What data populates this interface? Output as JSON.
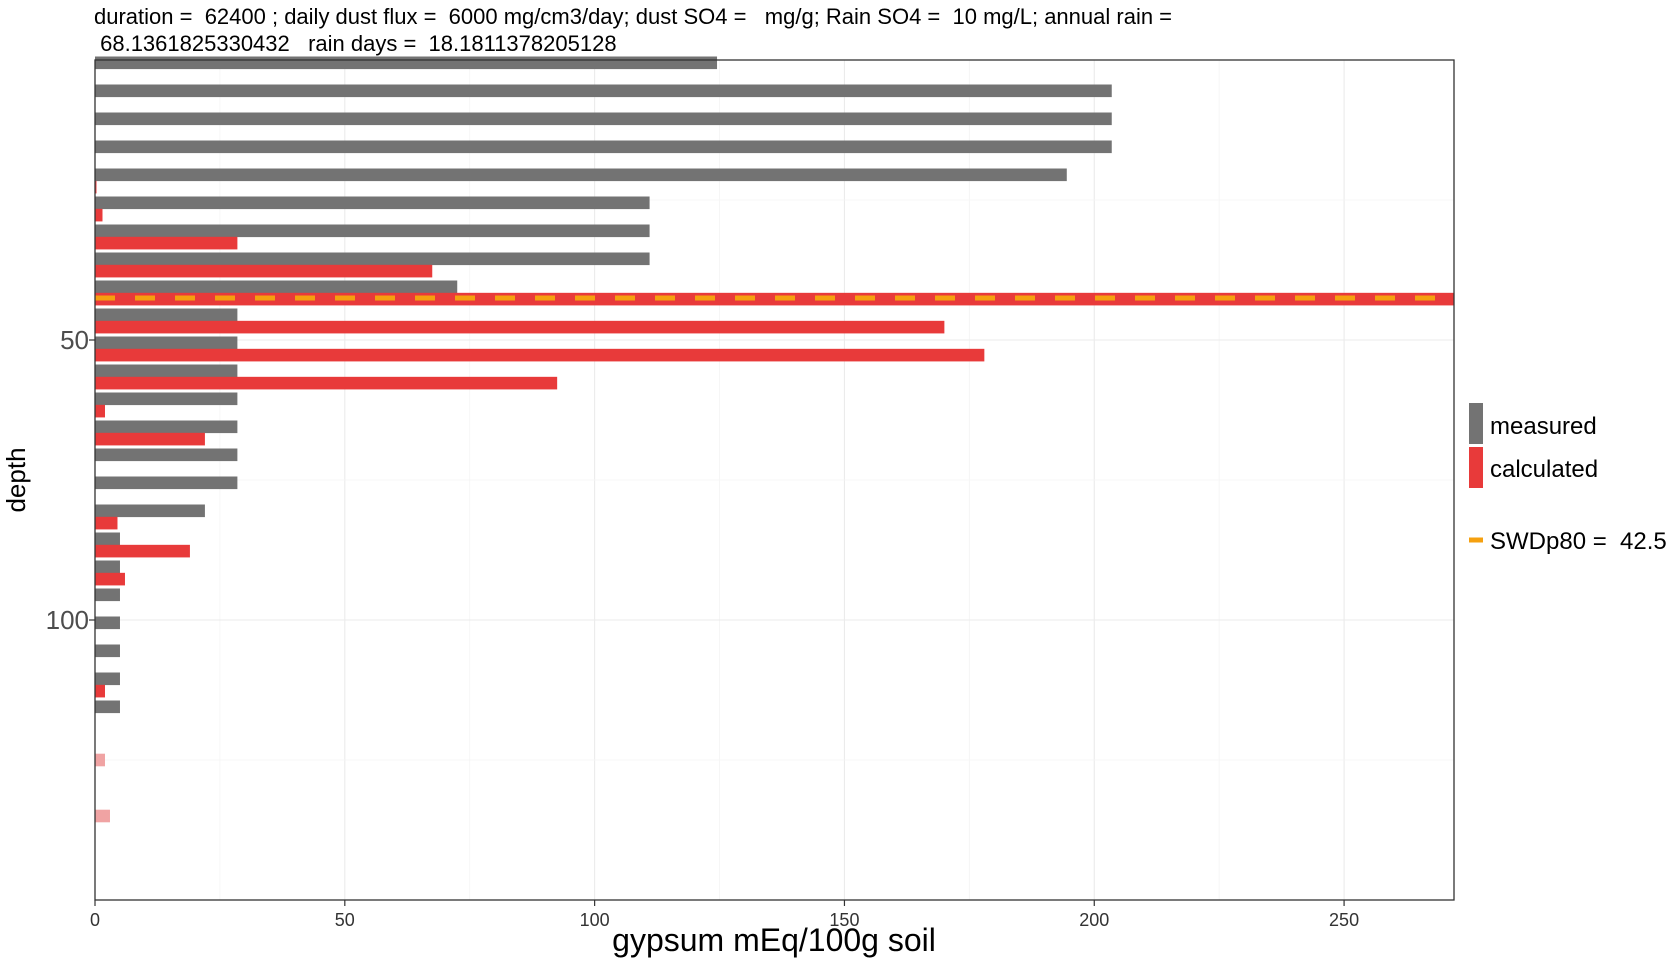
{
  "chart_data": {
    "type": "bar",
    "orientation": "horizontal",
    "title_lines": [
      "duration =  62400 ; daily dust flux =  6000 mg/cm3/day; dust SO4 =   mg/g; Rain SO4 =  10 mg/L; annual rain =",
      " 68.1361825330432   rain days =  18.1811378205128"
    ],
    "xlabel": "gypsum mEq/100g soil",
    "ylabel": "depth",
    "xlim": [
      0,
      272
    ],
    "ylim": [
      0,
      150
    ],
    "y_reversed": true,
    "x_ticks": [
      0,
      50,
      100,
      150,
      200,
      250
    ],
    "x_tick_labels": [
      "0",
      "50",
      "100",
      "150",
      "200",
      "250"
    ],
    "y_ticks": [
      50,
      100
    ],
    "y_tick_labels": [
      "50",
      "100"
    ],
    "grid": true,
    "legend": {
      "position": "right",
      "entries": [
        {
          "label": "measured",
          "color": "#737373"
        },
        {
          "label": "calculated",
          "color": "#e83a3a"
        }
      ],
      "line_label": "SWDp80 =  42.5"
    },
    "colors": {
      "measured": "#737373",
      "calculated": "#e83a3a",
      "calculated_faded": "#f0a3a3",
      "swd_line": "#f5a00f"
    },
    "bar_thickness_depth": 2.25,
    "series": [
      {
        "name": "measured",
        "points": [
          {
            "depth": 0.5,
            "value": 124.5
          },
          {
            "depth": 5.5,
            "value": 203.5
          },
          {
            "depth": 10.5,
            "value": 203.5
          },
          {
            "depth": 15.5,
            "value": 203.5
          },
          {
            "depth": 20.5,
            "value": 194.5
          },
          {
            "depth": 25.5,
            "value": 111
          },
          {
            "depth": 30.5,
            "value": 111
          },
          {
            "depth": 35.5,
            "value": 111
          },
          {
            "depth": 40.5,
            "value": 72.5
          },
          {
            "depth": 45.5,
            "value": 28.5
          },
          {
            "depth": 50.5,
            "value": 28.5
          },
          {
            "depth": 55.5,
            "value": 28.5
          },
          {
            "depth": 60.5,
            "value": 28.5
          },
          {
            "depth": 65.5,
            "value": 28.5
          },
          {
            "depth": 70.5,
            "value": 28.5
          },
          {
            "depth": 75.5,
            "value": 28.5
          },
          {
            "depth": 80.5,
            "value": 22
          },
          {
            "depth": 85.5,
            "value": 5
          },
          {
            "depth": 90.5,
            "value": 5
          },
          {
            "depth": 95.5,
            "value": 5
          },
          {
            "depth": 100.5,
            "value": 5
          },
          {
            "depth": 105.5,
            "value": 5
          },
          {
            "depth": 110.5,
            "value": 5
          },
          {
            "depth": 115.5,
            "value": 5
          }
        ]
      },
      {
        "name": "calculated",
        "points": [
          {
            "depth": 22.7,
            "value": 0.3
          },
          {
            "depth": 27.7,
            "value": 1.5
          },
          {
            "depth": 32.7,
            "value": 28.5
          },
          {
            "depth": 37.7,
            "value": 67.5
          },
          {
            "depth": 42.7,
            "value": 272
          },
          {
            "depth": 47.7,
            "value": 170
          },
          {
            "depth": 52.7,
            "value": 178
          },
          {
            "depth": 57.7,
            "value": 92.5
          },
          {
            "depth": 62.7,
            "value": 2
          },
          {
            "depth": 67.7,
            "value": 22
          },
          {
            "depth": 82.7,
            "value": 4.5
          },
          {
            "depth": 87.7,
            "value": 19
          },
          {
            "depth": 92.7,
            "value": 6
          },
          {
            "depth": 112.7,
            "value": 2
          }
        ]
      },
      {
        "name": "calculated_faded",
        "points": [
          {
            "depth": 125,
            "value": 2
          },
          {
            "depth": 135,
            "value": 3
          }
        ]
      }
    ],
    "swd_line_depth": 42.5
  }
}
